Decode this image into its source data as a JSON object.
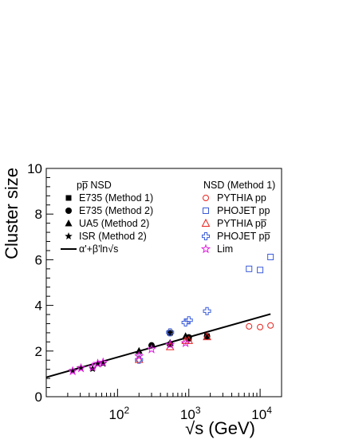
{
  "chart_data": {
    "type": "scatter",
    "title": "",
    "xlabel": "√s (GeV)",
    "ylabel": "Cluster size",
    "x_scale": "log",
    "xlim": [
      10,
      20000
    ],
    "ylim": [
      0,
      10
    ],
    "y_ticks": [
      0,
      2,
      4,
      6,
      8,
      10
    ],
    "x_tick_labels": [
      {
        "value": 100,
        "base": "10",
        "exp": "2"
      },
      {
        "value": 1000,
        "base": "10",
        "exp": "3"
      },
      {
        "value": 10000,
        "base": "10",
        "exp": "4"
      }
    ],
    "grid": false,
    "legend": {
      "placement": "top-left",
      "header_left": "pp̅ NSD",
      "header_right": "NSD (Method 1)"
    },
    "series": [
      {
        "name": "E735 (Method 1)",
        "marker": "square-filled",
        "color": "#000000",
        "data": [
          [
            546,
            2.8
          ],
          [
            1000,
            2.55
          ],
          [
            1800,
            2.65
          ]
        ]
      },
      {
        "name": "E735 (Method 2)",
        "marker": "circle-filled",
        "color": "#000000",
        "data": [
          [
            300,
            2.25
          ],
          [
            546,
            2.3
          ],
          [
            1000,
            2.6
          ],
          [
            1800,
            2.65
          ]
        ]
      },
      {
        "name": "UA5 (Method 2)",
        "marker": "triangle-filled",
        "color": "#000000",
        "data": [
          [
            200,
            2.0
          ],
          [
            546,
            2.35
          ],
          [
            900,
            2.65
          ]
        ]
      },
      {
        "name": "ISR (Method 2)",
        "marker": "star-filled",
        "color": "#000000",
        "data": [
          [
            23.5,
            1.15
          ],
          [
            30.7,
            1.28
          ],
          [
            44.7,
            1.22
          ],
          [
            52.8,
            1.43
          ],
          [
            62.7,
            1.45
          ]
        ]
      },
      {
        "name": "α'+β'ln√s",
        "marker": "line",
        "color": "#000000",
        "fit_endpoints": [
          [
            10,
            0.85
          ],
          [
            14000,
            3.62
          ]
        ]
      },
      {
        "name": "PYTHIA pp",
        "marker": "circle-open",
        "color": "#e8231e",
        "data": [
          [
            7000,
            3.08
          ],
          [
            10000,
            3.05
          ],
          [
            14000,
            3.12
          ]
        ]
      },
      {
        "name": "PHOJET pp",
        "marker": "square-open",
        "color": "#3a5bd9",
        "data": [
          [
            7000,
            5.6
          ],
          [
            10000,
            5.55
          ],
          [
            14000,
            6.12
          ]
        ]
      },
      {
        "name": "PYTHIA pp̅",
        "marker": "triangle-open",
        "color": "#e8231e",
        "data": [
          [
            200,
            1.62
          ],
          [
            546,
            2.18
          ],
          [
            900,
            2.45
          ],
          [
            1000,
            2.45
          ],
          [
            1800,
            2.62
          ]
        ]
      },
      {
        "name": "PHOJET pp̅",
        "marker": "cross-open",
        "color": "#3a5bd9",
        "data": [
          [
            200,
            1.62
          ],
          [
            546,
            2.82
          ],
          [
            900,
            3.25
          ],
          [
            1000,
            3.35
          ],
          [
            1800,
            3.75
          ]
        ]
      },
      {
        "name": "Lim",
        "marker": "star-open",
        "color": "#e01ee0",
        "data": [
          [
            23.5,
            1.12
          ],
          [
            30.7,
            1.25
          ],
          [
            44.7,
            1.3
          ],
          [
            52.8,
            1.45
          ],
          [
            62.7,
            1.5
          ],
          [
            200,
            1.78
          ],
          [
            300,
            2.08
          ],
          [
            546,
            2.28
          ],
          [
            900,
            2.35
          ]
        ]
      }
    ]
  }
}
